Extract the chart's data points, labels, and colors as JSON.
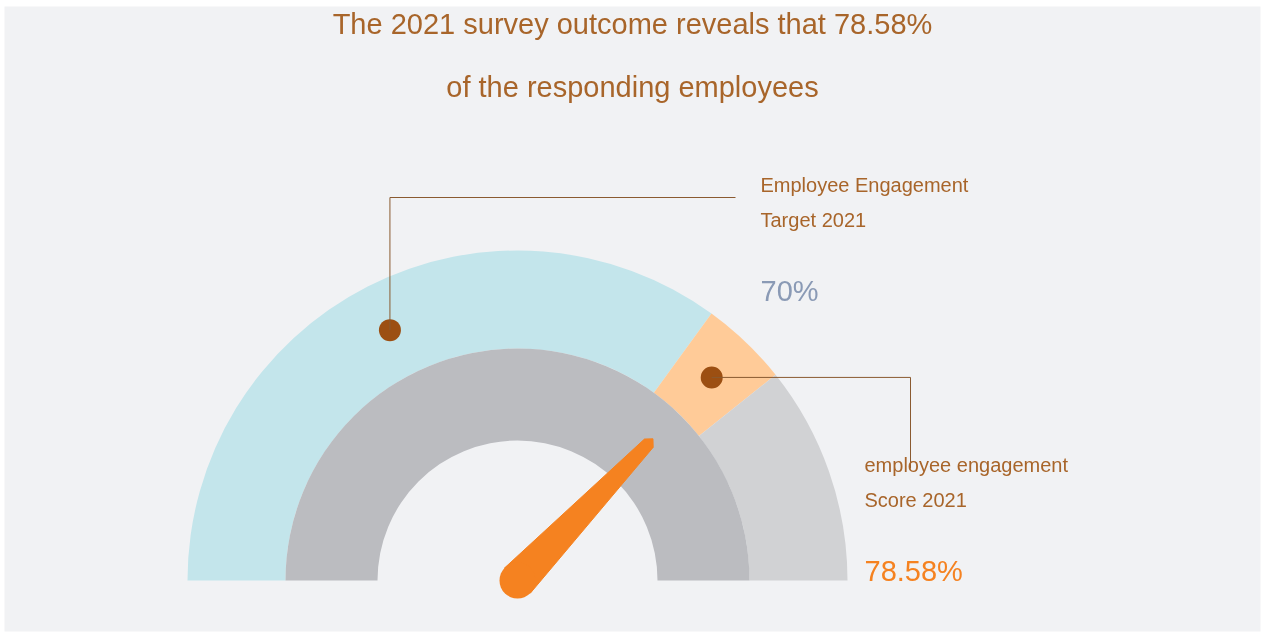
{
  "chart_data": {
    "type": "donut",
    "title": "The 2021 survey outcome reveals that 78.58% of the responding employees",
    "categories": [
      "Employee Engagement Target 2021",
      "employee engagement Score 2021",
      null
    ],
    "values": [
      70,
      8.58,
      21.42
    ],
    "colors": [
      "#c3e5eb",
      "#ffcb98",
      "#d1d2d4"
    ],
    "annotations": [
      "70%",
      "78.58%"
    ],
    "needle": "employee engagement Score 2021"
  }
}
